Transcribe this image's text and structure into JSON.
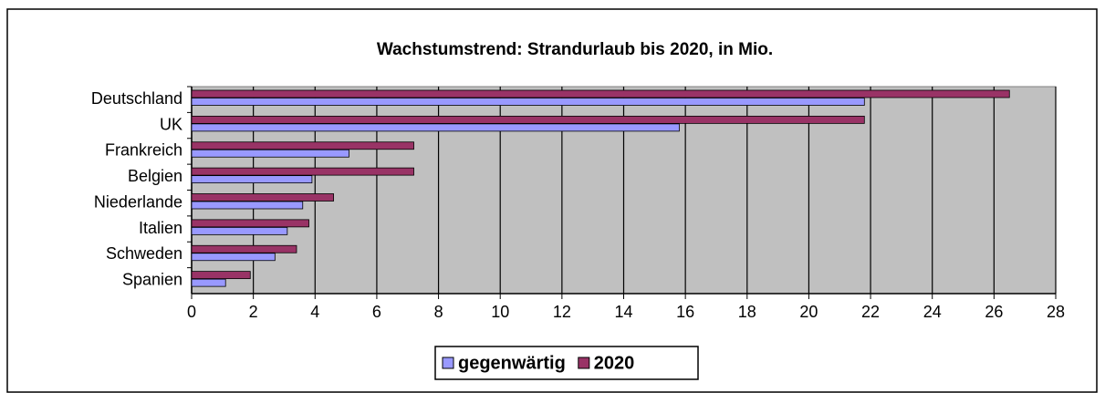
{
  "chart_data": {
    "type": "barh",
    "title": "Wachstumstrend: Strandurlaub bis 2020, in Mio.",
    "categories": [
      "Deutschland",
      "UK",
      "Frankreich",
      "Belgien",
      "Niederlande",
      "Italien",
      "Schweden",
      "Spanien"
    ],
    "series": [
      {
        "name": "gegenwärtig",
        "color": "#9999ff",
        "values": [
          21.8,
          15.8,
          5.1,
          3.9,
          3.6,
          3.1,
          2.7,
          1.1
        ]
      },
      {
        "name": "2020",
        "color": "#993366",
        "values": [
          26.5,
          21.8,
          7.2,
          7.2,
          4.6,
          3.8,
          3.4,
          1.9
        ]
      }
    ],
    "xlim": [
      0,
      28
    ],
    "xticks": [
      0,
      2,
      4,
      6,
      8,
      10,
      12,
      14,
      16,
      18,
      20,
      22,
      24,
      26,
      28
    ],
    "grid": true,
    "legend": "bottom"
  }
}
